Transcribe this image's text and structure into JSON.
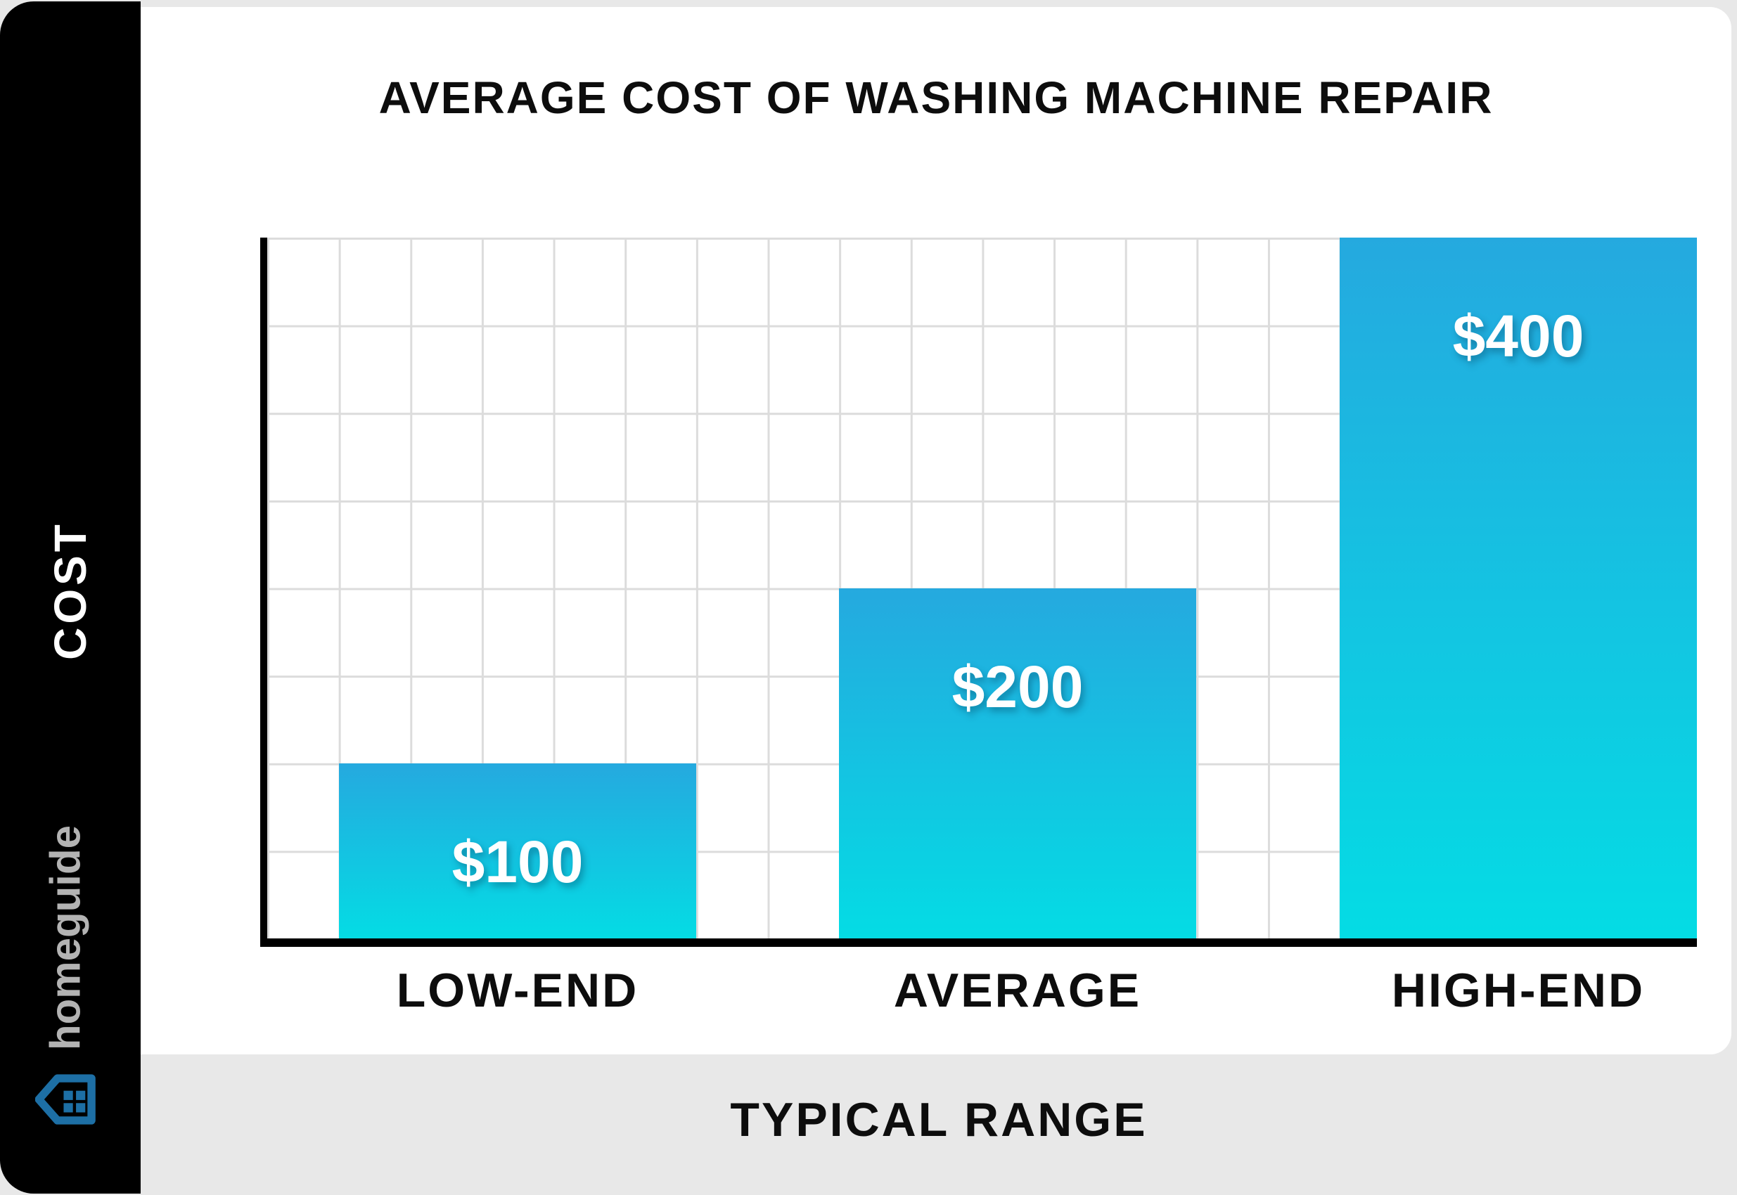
{
  "page": {
    "background_color": "#e8e8e8",
    "sidebar_color": "#000000",
    "card_color": "#ffffff"
  },
  "sidebar": {
    "brand": "homeguide",
    "brand_color": "#b3b3b3",
    "logo_icon": "house-icon",
    "logo_color": "#1d6fa5"
  },
  "chart_data": {
    "type": "bar",
    "title": "AVERAGE COST OF WASHING MACHINE REPAIR",
    "categories": [
      "LOW-END",
      "AVERAGE",
      "HIGH-END"
    ],
    "values": [
      100,
      200,
      400
    ],
    "value_labels": [
      "$100",
      "$200",
      "$400"
    ],
    "xlabel": "TYPICAL RANGE",
    "ylabel": "COST",
    "ylim": [
      0,
      400
    ],
    "grid": true,
    "grid_rows": 8,
    "grid_cols": 20,
    "grid_step_value": 50,
    "grid_color": "#dcdcdc",
    "axis_color": "#000000",
    "bar_gradient_top": "#25a9df",
    "bar_gradient_bottom": "#04dce4",
    "value_label_color": "#ffffff",
    "legend": "none"
  }
}
